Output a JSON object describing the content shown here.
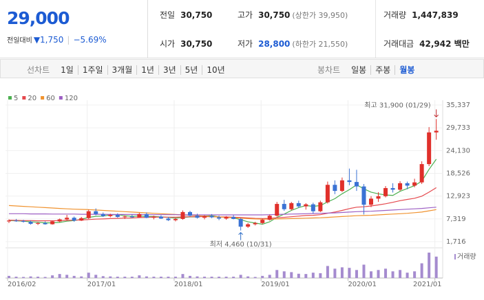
{
  "header": {
    "price": "29,000",
    "change_label": "전일대비",
    "change": "▼1,750",
    "change_pct": "−5.69%",
    "stats": [
      {
        "label": "전일",
        "value": "30,750"
      },
      {
        "label": "고가",
        "value": "30,750",
        "note": "(상한가 39,950)"
      },
      {
        "label": "거래량",
        "value": "1,447,839"
      },
      {
        "label": "시가",
        "value": "30,750"
      },
      {
        "label": "저가",
        "value": "28,800",
        "note": "(하한가 21,550)"
      },
      {
        "label": "거래대금",
        "value": "42,942 백만"
      }
    ]
  },
  "tabs": {
    "line_label": "선차트",
    "line_items": [
      "1일",
      "1주일",
      "3개월",
      "1년",
      "3년",
      "5년",
      "10년"
    ],
    "candle_label": "봉차트",
    "candle_items": [
      "일봉",
      "주봉",
      "월봉"
    ],
    "selected": "월봉"
  },
  "chart_data": {
    "type": "candlestick",
    "categories": [
      "2016/02",
      null,
      null,
      null,
      null,
      null,
      null,
      null,
      null,
      null,
      null,
      "2017/01",
      null,
      null,
      null,
      null,
      null,
      null,
      null,
      null,
      null,
      null,
      null,
      "2018/01",
      null,
      null,
      null,
      null,
      null,
      null,
      null,
      null,
      null,
      null,
      null,
      "2019/01",
      null,
      null,
      null,
      null,
      null,
      null,
      null,
      null,
      null,
      null,
      null,
      "2020/01",
      null,
      null,
      null,
      null,
      null,
      null,
      null,
      null,
      null,
      null,
      null,
      "2021/01"
    ],
    "open": [
      6700,
      6900,
      6800,
      6600,
      6100,
      6300,
      6000,
      6700,
      7200,
      7600,
      6900,
      7500,
      9200,
      8500,
      8000,
      8300,
      7800,
      7900,
      7700,
      8500,
      7600,
      7900,
      7400,
      7000,
      7300,
      9000,
      8100,
      7600,
      8000,
      7700,
      7400,
      7800,
      7300,
      5400,
      6000,
      6300,
      7100,
      8100,
      11000,
      9700,
      11200,
      10400,
      10900,
      9200,
      11400,
      15700,
      14200,
      16800,
      16400,
      15300,
      10800,
      12300,
      12900,
      14900,
      14500,
      16100,
      15500,
      16300,
      20800,
      28600
    ],
    "high": [
      7200,
      7300,
      7100,
      6900,
      6500,
      6700,
      6900,
      7400,
      8300,
      7900,
      7800,
      9600,
      9900,
      8900,
      8600,
      8700,
      8200,
      8400,
      8800,
      8900,
      8100,
      8200,
      7800,
      7600,
      9400,
      9300,
      8600,
      8200,
      8500,
      8100,
      8000,
      8200,
      7500,
      6300,
      6600,
      7400,
      8400,
      11500,
      12000,
      11500,
      11800,
      11200,
      11300,
      11800,
      16500,
      16800,
      17500,
      19700,
      19400,
      15900,
      12900,
      13900,
      15400,
      16100,
      16600,
      16500,
      17200,
      21500,
      29900,
      31900
    ],
    "low": [
      6300,
      6600,
      6400,
      5900,
      5800,
      5900,
      5900,
      6500,
      6900,
      6600,
      6800,
      7300,
      8200,
      7800,
      7700,
      7600,
      7300,
      7500,
      7600,
      7500,
      7200,
      7300,
      6800,
      6700,
      7100,
      7900,
      7400,
      7200,
      7500,
      7000,
      7100,
      7200,
      4460,
      5100,
      5700,
      6000,
      6900,
      7900,
      9300,
      9400,
      10000,
      9600,
      8600,
      9000,
      11100,
      13400,
      13900,
      15600,
      14200,
      8400,
      10200,
      11500,
      12600,
      13800,
      14200,
      14600,
      15100,
      15900,
      20300,
      26800
    ],
    "close": [
      6900,
      6800,
      6600,
      6100,
      6300,
      6000,
      6700,
      7200,
      7600,
      6900,
      7500,
      9200,
      8500,
      8000,
      8300,
      7800,
      7900,
      7700,
      8500,
      7600,
      7900,
      7400,
      7000,
      7300,
      9000,
      8100,
      7600,
      8000,
      7700,
      7400,
      7800,
      7300,
      5400,
      6000,
      6300,
      7100,
      8100,
      11000,
      9700,
      11200,
      10400,
      10900,
      9200,
      11400,
      15700,
      14200,
      16800,
      16400,
      15300,
      10800,
      12300,
      12900,
      14900,
      14500,
      16100,
      15500,
      16300,
      20800,
      28600,
      29000
    ],
    "up_color": "#e0302b",
    "down_color": "#3a72d4",
    "series": [
      {
        "name": "5",
        "color": "#4cb050",
        "values": [
          6900,
          6850,
          6750,
          6600,
          6500,
          6350,
          6350,
          6450,
          6750,
          6900,
          7200,
          7700,
          7950,
          8000,
          8300,
          8350,
          8100,
          7950,
          8050,
          7900,
          7900,
          7800,
          7700,
          7500,
          7700,
          7800,
          7800,
          8000,
          8100,
          7800,
          7700,
          7600,
          7100,
          6600,
          6300,
          6000,
          6600,
          7700,
          8500,
          9400,
          10100,
          10600,
          10400,
          10600,
          11500,
          12300,
          13500,
          14500,
          15700,
          14700,
          13900,
          13500,
          13200,
          13100,
          14100,
          14800,
          15500,
          16600,
          19500,
          22000
        ]
      },
      {
        "name": "20",
        "color": "#e5484d",
        "values": [
          7000,
          6950,
          6900,
          6900,
          6850,
          6850,
          6850,
          6900,
          6950,
          7000,
          7050,
          7150,
          7250,
          7300,
          7400,
          7450,
          7500,
          7550,
          7650,
          7700,
          7750,
          7750,
          7750,
          7750,
          7800,
          7850,
          7850,
          7850,
          7850,
          7800,
          7800,
          7750,
          7650,
          7550,
          7450,
          7400,
          7450,
          7600,
          7700,
          7850,
          8000,
          8150,
          8200,
          8350,
          8700,
          9000,
          9400,
          9850,
          10200,
          10300,
          10500,
          10750,
          11050,
          11400,
          11800,
          12100,
          12400,
          12900,
          13900,
          15000
        ]
      },
      {
        "name": "60",
        "color": "#f0922e",
        "values": [
          10600,
          10500,
          10400,
          10300,
          10200,
          10100,
          10000,
          9900,
          9800,
          9700,
          9650,
          9600,
          9500,
          9400,
          9300,
          9200,
          9100,
          9000,
          8900,
          8800,
          8700,
          8600,
          8500,
          8400,
          8300,
          8200,
          8100,
          8000,
          7900,
          7800,
          7700,
          7600,
          7500,
          7400,
          7300,
          7250,
          7250,
          7300,
          7350,
          7400,
          7450,
          7500,
          7550,
          7600,
          7700,
          7800,
          7900,
          8000,
          8100,
          8150,
          8200,
          8300,
          8400,
          8500,
          8600,
          8700,
          8850,
          9000,
          9300,
          9600
        ]
      },
      {
        "name": "120",
        "color": "#9d5fc4",
        "values": [
          8600,
          8600,
          8600,
          8550,
          8550,
          8550,
          8500,
          8500,
          8500,
          8500,
          8450,
          8450,
          8450,
          8450,
          8400,
          8400,
          8400,
          8400,
          8400,
          8350,
          8350,
          8350,
          8350,
          8350,
          8300,
          8300,
          8300,
          8300,
          8300,
          8300,
          8300,
          8300,
          8300,
          8300,
          8300,
          8300,
          8350,
          8400,
          8450,
          8500,
          8550,
          8600,
          8650,
          8700,
          8750,
          8800,
          8900,
          9000,
          9100,
          9150,
          9200,
          9300,
          9400,
          9500,
          9600,
          9700,
          9800,
          9900,
          10050,
          10200
        ]
      }
    ],
    "ylim": [
      1716,
      35337
    ],
    "yticks": [
      {
        "value": 35337,
        "label": "35,337"
      },
      {
        "value": 29733,
        "label": "29,733"
      },
      {
        "value": 24130,
        "label": "24,130"
      },
      {
        "value": 18526,
        "label": "18,526"
      },
      {
        "value": 12923,
        "label": "12,923"
      },
      {
        "value": 7319,
        "label": "7,319"
      },
      {
        "value": 1716,
        "label": "1,716"
      }
    ],
    "grid": true,
    "annotations": {
      "high": "최고 31,900 (01/29)",
      "low": "최저 4,460 (10/31)"
    },
    "volume": {
      "label": "거래량",
      "color": "#a58bcf",
      "ylim": [
        0,
        100
      ],
      "values": [
        8,
        5,
        4,
        6,
        5,
        4,
        10,
        15,
        12,
        8,
        6,
        20,
        12,
        7,
        6,
        5,
        5,
        5,
        10,
        6,
        5,
        5,
        5,
        5,
        15,
        8,
        6,
        5,
        5,
        5,
        5,
        5,
        12,
        6,
        4,
        8,
        12,
        30,
        25,
        22,
        16,
        15,
        20,
        18,
        45,
        35,
        40,
        38,
        30,
        50,
        25,
        30,
        35,
        25,
        30,
        20,
        25,
        55,
        95,
        80
      ]
    }
  }
}
